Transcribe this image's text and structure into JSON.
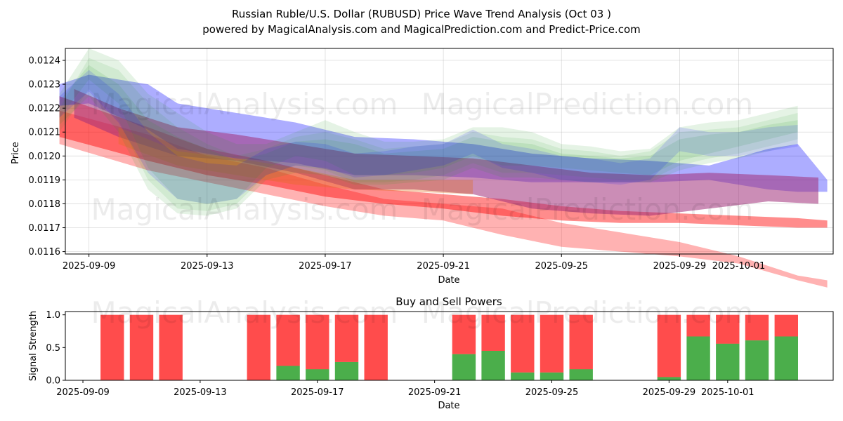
{
  "title_line1": "Russian Ruble/U.S. Dollar (RUBUSD) Price Wave Trend Analysis (Oct 03 )",
  "title_line2": "powered by MagicalAnalysis.com and MagicalPrediction.com and Predict-Price.com",
  "watermarks": [
    "MagicalAnalysis.com",
    "MagicalPrediction.com"
  ],
  "colors": {
    "red": "#ff0000",
    "blue": "#0000ff",
    "green": "#2ca02c",
    "purple": "#a0307a",
    "orange": "#e07020",
    "buy": "#2ca02c",
    "sell": "#ff0000"
  },
  "chart_data": [
    {
      "type": "area",
      "title": "",
      "xlabel": "Date",
      "ylabel": "Price",
      "x_range": [
        -0.8,
        25.2
      ],
      "ylim": [
        0.01159,
        0.01245
      ],
      "x_ticks": [
        {
          "pos": 0,
          "label": "2025-09-09"
        },
        {
          "pos": 4,
          "label": "2025-09-13"
        },
        {
          "pos": 8,
          "label": "2025-09-17"
        },
        {
          "pos": 12,
          "label": "2025-09-21"
        },
        {
          "pos": 16,
          "label": "2025-09-25"
        },
        {
          "pos": 20,
          "label": "2025-09-29"
        },
        {
          "pos": 22,
          "label": "2025-10-01"
        }
      ],
      "y_ticks": [
        {
          "value": 0.0116,
          "label": "0.0116"
        },
        {
          "value": 0.0117,
          "label": "0.0117"
        },
        {
          "value": 0.0118,
          "label": "0.0118"
        },
        {
          "value": 0.0119,
          "label": "0.0119"
        },
        {
          "value": 0.012,
          "label": "0.0120"
        },
        {
          "value": 0.0121,
          "label": "0.0121"
        },
        {
          "value": 0.0122,
          "label": "0.0122"
        },
        {
          "value": 0.0123,
          "label": "0.0123"
        },
        {
          "value": 0.0124,
          "label": "0.0124"
        }
      ],
      "series": [
        {
          "name": "red-wide",
          "color": "red",
          "opacity": 0.3,
          "x": [
            -1,
            2,
            4,
            6,
            8,
            10,
            12,
            14,
            16,
            18,
            20,
            22,
            24,
            25
          ],
          "upper": [
            0.01219,
            0.01209,
            0.012,
            0.01195,
            0.01188,
            0.01182,
            0.0118,
            0.01178,
            0.01172,
            0.01168,
            0.01164,
            0.01158,
            0.0115,
            0.01148
          ],
          "lower": [
            0.01205,
            0.01194,
            0.01189,
            0.01184,
            0.01179,
            0.01175,
            0.01173,
            0.01167,
            0.01162,
            0.0116,
            0.01158,
            0.01155,
            0.01148,
            0.01145
          ]
        },
        {
          "name": "red-narrow",
          "color": "red",
          "opacity": 0.45,
          "x": [
            -1,
            2,
            4,
            6,
            8,
            10,
            12,
            14,
            16,
            18,
            20,
            22,
            24,
            25
          ],
          "upper": [
            0.01225,
            0.01212,
            0.01203,
            0.01198,
            0.01192,
            0.01186,
            0.01184,
            0.01182,
            0.01179,
            0.01177,
            0.01176,
            0.01175,
            0.01174,
            0.01173
          ],
          "lower": [
            0.01208,
            0.01198,
            0.01192,
            0.01188,
            0.01183,
            0.0118,
            0.01178,
            0.01175,
            0.01173,
            0.01172,
            0.01172,
            0.01171,
            0.0117,
            0.0117
          ]
        },
        {
          "name": "blue-main",
          "color": "blue",
          "opacity": 0.32,
          "x": [
            -1,
            0,
            2,
            3,
            5,
            7,
            9,
            11,
            13,
            15,
            17,
            19,
            21,
            23,
            24,
            25
          ],
          "upper": [
            0.0123,
            0.01234,
            0.0123,
            0.01222,
            0.01218,
            0.01214,
            0.01208,
            0.01207,
            0.01205,
            0.01201,
            0.01199,
            0.01198,
            0.01196,
            0.01203,
            0.01205,
            0.0119
          ],
          "lower": [
            0.01221,
            0.01222,
            0.01211,
            0.01203,
            0.01199,
            0.01197,
            0.01192,
            0.01192,
            0.01191,
            0.01189,
            0.01189,
            0.01189,
            0.0119,
            0.01186,
            0.01185,
            0.01185
          ]
        },
        {
          "name": "purple",
          "color": "purple",
          "opacity": 0.55,
          "x": [
            -0.5,
            1,
            3,
            5,
            7,
            9,
            11,
            13,
            15,
            17,
            19,
            21,
            23,
            24.7
          ],
          "upper": [
            0.01228,
            0.0122,
            0.01212,
            0.01209,
            0.01205,
            0.01201,
            0.012,
            0.01199,
            0.01196,
            0.01193,
            0.01192,
            0.01193,
            0.01192,
            0.01191
          ],
          "lower": [
            0.01216,
            0.01208,
            0.012,
            0.01198,
            0.01193,
            0.01186,
            0.01186,
            0.01184,
            0.01178,
            0.01176,
            0.01175,
            0.01178,
            0.01181,
            0.0118
          ]
        },
        {
          "name": "orange",
          "color": "orange",
          "opacity": 0.35,
          "x": [
            1,
            3,
            5,
            7,
            9,
            11,
            13
          ],
          "upper": [
            0.01212,
            0.01202,
            0.01199,
            0.01195,
            0.0119,
            0.0119,
            0.0119
          ],
          "lower": [
            0.01205,
            0.01196,
            0.01192,
            0.01188,
            0.01186,
            0.01185,
            0.01184
          ]
        },
        {
          "name": "green-wave-1",
          "color": "green",
          "opacity": 0.12,
          "x": [
            -1,
            0,
            1,
            2,
            3,
            4,
            5,
            6,
            7,
            8,
            9,
            10,
            11,
            12,
            13,
            14,
            15,
            16,
            17,
            18,
            19,
            20,
            21,
            22,
            23,
            24
          ],
          "upper": [
            0.01226,
            0.01245,
            0.0124,
            0.01226,
            0.01218,
            0.0121,
            0.01205,
            0.01205,
            0.0121,
            0.01215,
            0.0121,
            0.01206,
            0.01206,
            0.01207,
            0.01212,
            0.01212,
            0.0121,
            0.01205,
            0.01204,
            0.01202,
            0.01203,
            0.01212,
            0.01214,
            0.01215,
            0.01218,
            0.01221
          ],
          "lower": [
            0.01216,
            0.01232,
            0.01222,
            0.01195,
            0.01182,
            0.0118,
            0.01182,
            0.01195,
            0.012,
            0.01198,
            0.01192,
            0.01192,
            0.01193,
            0.01195,
            0.012,
            0.01196,
            0.01196,
            0.01195,
            0.01194,
            0.01193,
            0.01192,
            0.01198,
            0.01201,
            0.01204,
            0.01207,
            0.0121
          ]
        },
        {
          "name": "green-wave-2",
          "color": "green",
          "opacity": 0.1,
          "x": [
            -1,
            0,
            1,
            2,
            3,
            4,
            5,
            6,
            7,
            8,
            9,
            10,
            11,
            12,
            13,
            14,
            15,
            16,
            17,
            18,
            19,
            20,
            21,
            22,
            23,
            24
          ],
          "upper": [
            0.0122,
            0.01241,
            0.01236,
            0.01222,
            0.01212,
            0.01205,
            0.012,
            0.01203,
            0.01208,
            0.0121,
            0.01207,
            0.01203,
            0.01204,
            0.01205,
            0.0121,
            0.01208,
            0.01207,
            0.01203,
            0.01202,
            0.012,
            0.01202,
            0.0121,
            0.01211,
            0.01212,
            0.01215,
            0.01218
          ],
          "lower": [
            0.0121,
            0.01228,
            0.01215,
            0.0119,
            0.01178,
            0.01177,
            0.0118,
            0.01192,
            0.01196,
            0.01194,
            0.01189,
            0.01189,
            0.0119,
            0.01192,
            0.01197,
            0.01193,
            0.01193,
            0.01192,
            0.01191,
            0.0119,
            0.0119,
            0.01196,
            0.01199,
            0.01201,
            0.01204,
            0.01207
          ]
        },
        {
          "name": "green-wave-3",
          "color": "green",
          "opacity": 0.12,
          "x": [
            -1,
            0,
            1,
            2,
            3,
            4,
            5,
            6,
            7,
            8,
            9,
            10,
            11,
            12,
            13,
            14,
            15,
            16,
            17,
            18,
            19,
            20,
            21,
            22,
            23,
            24
          ],
          "upper": [
            0.01223,
            0.01238,
            0.0123,
            0.01215,
            0.01208,
            0.01203,
            0.01198,
            0.01201,
            0.01206,
            0.01207,
            0.01205,
            0.01201,
            0.01202,
            0.01203,
            0.01208,
            0.01206,
            0.01205,
            0.01201,
            0.012,
            0.01199,
            0.012,
            0.01207,
            0.01209,
            0.0121,
            0.01213,
            0.01215
          ],
          "lower": [
            0.01213,
            0.01225,
            0.0121,
            0.01186,
            0.01176,
            0.01175,
            0.01178,
            0.0119,
            0.01193,
            0.01192,
            0.01188,
            0.01188,
            0.01189,
            0.0119,
            0.01195,
            0.01191,
            0.01191,
            0.0119,
            0.01189,
            0.01189,
            0.01189,
            0.01194,
            0.01197,
            0.01199,
            0.01202,
            0.01205
          ]
        },
        {
          "name": "blue-wave",
          "color": "blue",
          "opacity": 0.13,
          "x": [
            -1,
            0,
            1,
            2,
            3,
            4,
            5,
            6,
            7,
            8,
            9,
            10,
            11,
            12,
            13,
            14,
            15,
            16,
            17,
            18,
            19,
            20,
            21,
            22,
            23,
            24
          ],
          "upper": [
            0.01225,
            0.01236,
            0.01226,
            0.0121,
            0.012,
            0.01197,
            0.01196,
            0.01203,
            0.01206,
            0.01205,
            0.01201,
            0.01202,
            0.01204,
            0.01205,
            0.01211,
            0.01205,
            0.01203,
            0.012,
            0.01199,
            0.01197,
            0.01199,
            0.01212,
            0.0121,
            0.0121,
            0.01212,
            0.01213
          ],
          "lower": [
            0.01216,
            0.01227,
            0.01214,
            0.01193,
            0.01182,
            0.0118,
            0.01182,
            0.01192,
            0.01196,
            0.01195,
            0.01191,
            0.01192,
            0.01194,
            0.01196,
            0.01201,
            0.01195,
            0.01193,
            0.0119,
            0.01189,
            0.01188,
            0.0119,
            0.01202,
            0.012,
            0.012,
            0.01202,
            0.01204
          ]
        }
      ]
    },
    {
      "type": "bar",
      "title": "Buy and Sell Powers",
      "xlabel": "Date",
      "ylabel": "Signal Strength",
      "x_range": [
        -0.6,
        25.6
      ],
      "ylim": [
        0,
        1.05
      ],
      "x_ticks": [
        {
          "pos": 0,
          "label": "2025-09-09"
        },
        {
          "pos": 4,
          "label": "2025-09-13"
        },
        {
          "pos": 8,
          "label": "2025-09-17"
        },
        {
          "pos": 12,
          "label": "2025-09-21"
        },
        {
          "pos": 16,
          "label": "2025-09-25"
        },
        {
          "pos": 20,
          "label": "2025-09-29"
        },
        {
          "pos": 22,
          "label": "2025-10-01"
        }
      ],
      "y_ticks": [
        {
          "value": 0.0,
          "label": "0.0"
        },
        {
          "value": 0.5,
          "label": "0.5"
        },
        {
          "value": 1.0,
          "label": "1.0"
        }
      ],
      "categories": [
        "2025-09-10",
        "2025-09-11",
        "2025-09-12",
        "2025-09-15",
        "2025-09-16",
        "2025-09-17",
        "2025-09-18",
        "2025-09-19",
        "2025-09-22",
        "2025-09-23",
        "2025-09-24",
        "2025-09-25",
        "2025-09-26",
        "2025-09-29",
        "2025-09-30",
        "2025-10-01",
        "2025-10-02",
        "2025-10-03"
      ],
      "positions": [
        1,
        2,
        3,
        6,
        7,
        8,
        9,
        10,
        13,
        14,
        15,
        16,
        17,
        20,
        21,
        22,
        23,
        24
      ],
      "series": [
        {
          "name": "Buy",
          "color": "buy",
          "values": [
            0,
            0,
            0,
            0,
            0.22,
            0.17,
            0.28,
            0,
            0.4,
            0.45,
            0.12,
            0.12,
            0.17,
            0.05,
            0.67,
            0.56,
            0.61,
            0.67
          ]
        },
        {
          "name": "Sell",
          "color": "sell",
          "values": [
            1.0,
            1.0,
            1.0,
            1.0,
            0.78,
            0.83,
            0.72,
            1.0,
            0.6,
            0.55,
            0.88,
            0.88,
            0.83,
            0.95,
            0.33,
            0.44,
            0.39,
            0.33
          ]
        }
      ]
    }
  ]
}
